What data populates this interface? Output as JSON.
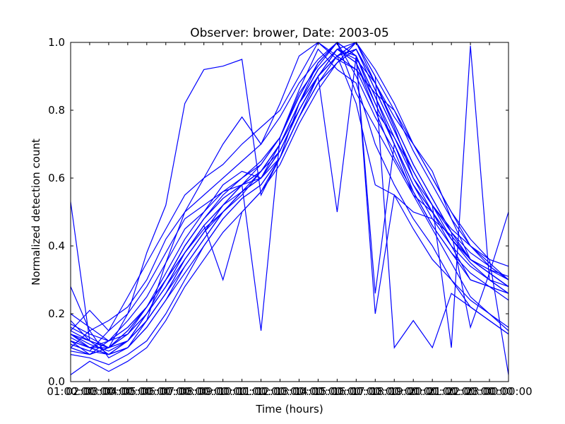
{
  "chart_data": {
    "type": "line",
    "title": "Observer: brower, Date: 2003-05",
    "xlabel": "Time (hours)",
    "ylabel": "Normalized detection count",
    "xlim": [
      1,
      24
    ],
    "ylim": [
      0,
      1
    ],
    "x_ticks": [
      {
        "value": 1,
        "label": "01:00:00"
      },
      {
        "value": 3,
        "label": "03:00:00"
      },
      {
        "value": 5,
        "label": "05:00:00"
      },
      {
        "value": 7,
        "label": "07:00:00"
      },
      {
        "value": 9,
        "label": "09:00:00"
      },
      {
        "value": 11,
        "label": "11:00:00"
      },
      {
        "value": 13,
        "label": "13:00:00"
      },
      {
        "value": 15,
        "label": "15:00:00"
      },
      {
        "value": 17,
        "label": "17:00:00"
      },
      {
        "value": 19,
        "label": "19:00:00"
      },
      {
        "value": 21,
        "label": "21:00:00"
      },
      {
        "value": 23,
        "label": "23:00:00"
      }
    ],
    "x_ticks_offset": [
      {
        "value": 2,
        "label": "02:00:00"
      },
      {
        "value": 4,
        "label": "04:00:00"
      },
      {
        "value": 6,
        "label": "06:00:00"
      },
      {
        "value": 8,
        "label": "08:00:00"
      },
      {
        "value": 10,
        "label": "10:00:00"
      },
      {
        "value": 12,
        "label": "12:00:00"
      },
      {
        "value": 14,
        "label": "14:00:00"
      },
      {
        "value": 16,
        "label": "16:00:00"
      },
      {
        "value": 18,
        "label": "18:00:00"
      },
      {
        "value": 20,
        "label": "20:00:00"
      },
      {
        "value": 22,
        "label": "22:00:00"
      },
      {
        "value": 24,
        "label": "00:00:00"
      }
    ],
    "y_ticks": [
      {
        "value": 0.0,
        "label": "0.0"
      },
      {
        "value": 0.2,
        "label": "0.2"
      },
      {
        "value": 0.4,
        "label": "0.4"
      },
      {
        "value": 0.6,
        "label": "0.6"
      },
      {
        "value": 0.8,
        "label": "0.8"
      },
      {
        "value": 1.0,
        "label": "1.0"
      }
    ],
    "grid": false,
    "line_color": "#0000ff",
    "x": [
      1,
      2,
      3,
      4,
      5,
      6,
      7,
      8,
      9,
      10,
      11,
      12,
      13,
      14,
      15,
      16,
      17,
      18,
      19,
      20,
      21,
      22,
      23,
      24
    ],
    "series": [
      {
        "values": [
          0.53,
          0.12,
          0.1,
          0.2,
          0.38,
          0.52,
          0.82,
          0.92,
          0.93,
          0.95,
          0.55,
          0.66,
          0.82,
          0.9,
          0.98,
          0.95,
          0.88,
          0.78,
          0.7,
          0.62,
          0.48,
          0.36,
          0.33,
          0.31
        ]
      },
      {
        "values": [
          0.15,
          0.21,
          0.15,
          0.25,
          0.35,
          0.45,
          0.55,
          0.6,
          0.7,
          0.78,
          0.7,
          0.82,
          0.96,
          1.0,
          0.95,
          0.92,
          0.85,
          0.8,
          0.7,
          0.6,
          0.5,
          0.4,
          0.36,
          0.34
        ]
      },
      {
        "values": [
          0.12,
          0.08,
          0.1,
          0.15,
          0.22,
          0.3,
          0.4,
          0.48,
          0.55,
          0.6,
          0.65,
          0.72,
          0.85,
          0.93,
          1.0,
          0.9,
          0.78,
          0.68,
          0.55,
          0.5,
          0.4,
          0.3,
          0.28,
          0.26
        ]
      },
      {
        "values": [
          0.28,
          0.15,
          0.07,
          0.1,
          0.18,
          0.35,
          0.5,
          0.6,
          0.64,
          0.7,
          0.75,
          0.8,
          0.9,
          1.0,
          0.96,
          0.82,
          0.58,
          0.55,
          0.5,
          0.48,
          0.43,
          0.36,
          0.33,
          0.3
        ]
      },
      {
        "values": [
          0.1,
          0.15,
          0.18,
          0.22,
          0.3,
          0.42,
          0.5,
          0.55,
          0.6,
          0.65,
          0.7,
          0.78,
          0.88,
          0.95,
          1.0,
          0.85,
          0.75,
          0.65,
          0.55,
          0.45,
          0.35,
          0.25,
          0.2,
          0.15
        ]
      },
      {
        "values": [
          0.18,
          0.12,
          0.08,
          0.12,
          0.2,
          0.3,
          0.38,
          0.45,
          0.5,
          0.55,
          0.62,
          0.7,
          0.82,
          0.92,
          0.98,
          1.0,
          0.88,
          0.75,
          0.6,
          0.52,
          0.45,
          0.4,
          0.35,
          0.3
        ]
      },
      {
        "values": [
          0.14,
          0.1,
          0.12,
          0.18,
          0.25,
          0.35,
          0.45,
          0.5,
          0.58,
          0.62,
          0.6,
          0.68,
          0.8,
          0.9,
          0.96,
          0.92,
          0.8,
          0.72,
          0.62,
          0.52,
          0.42,
          0.35,
          0.3,
          0.28
        ]
      },
      {
        "values": [
          0.11,
          0.09,
          0.15,
          0.2,
          0.28,
          0.38,
          0.48,
          0.52,
          0.56,
          0.6,
          0.64,
          0.72,
          0.86,
          0.98,
          0.92,
          0.88,
          0.7,
          0.58,
          0.48,
          0.4,
          0.3,
          0.22,
          0.18,
          0.14
        ]
      },
      {
        "values": [
          0.16,
          0.13,
          0.1,
          0.12,
          0.18,
          0.26,
          0.36,
          0.44,
          0.52,
          0.58,
          0.6,
          0.7,
          0.82,
          0.94,
          1.0,
          0.96,
          0.82,
          0.7,
          0.58,
          0.5,
          0.42,
          0.36,
          0.32,
          0.28
        ]
      },
      {
        "values": [
          0.08,
          0.07,
          0.05,
          0.08,
          0.12,
          0.2,
          0.3,
          0.4,
          0.48,
          0.54,
          0.58,
          0.66,
          0.78,
          0.88,
          0.96,
          1.0,
          0.9,
          0.8,
          0.68,
          0.58,
          0.48,
          0.4,
          0.34,
          0.3
        ]
      },
      {
        "values": [
          0.2,
          0.16,
          0.12,
          0.14,
          0.2,
          0.28,
          0.38,
          0.46,
          0.52,
          0.56,
          0.62,
          0.68,
          0.8,
          0.9,
          0.98,
          0.94,
          0.8,
          0.66,
          0.56,
          0.46,
          0.38,
          0.32,
          0.28,
          0.24
        ]
      },
      {
        "values": [
          0.12,
          0.1,
          0.08,
          0.1,
          0.16,
          0.24,
          0.34,
          0.42,
          0.5,
          0.56,
          0.6,
          0.66,
          0.78,
          0.88,
          0.94,
          0.98,
          0.86,
          0.74,
          0.62,
          0.52,
          0.44,
          0.38,
          0.34,
          0.3
        ]
      },
      {
        "values": [
          0.02,
          0.06,
          0.03,
          0.06,
          0.1,
          0.18,
          0.28,
          0.36,
          0.44,
          0.5,
          0.56,
          0.64,
          0.76,
          0.86,
          0.94,
          1.0,
          0.92,
          0.82,
          0.7,
          0.6,
          0.5,
          0.42,
          0.36,
          0.02
        ]
      },
      {
        "values": [
          0.14,
          0.12,
          0.1,
          0.14,
          0.22,
          0.32,
          0.42,
          0.5,
          0.56,
          0.58,
          0.64,
          0.72,
          0.84,
          0.94,
          1.0,
          0.96,
          0.84,
          0.7,
          0.58,
          0.48,
          0.4,
          0.34,
          0.3,
          0.26
        ]
      },
      {
        "values": [
          0.1,
          0.08,
          0.1,
          0.15,
          0.22,
          0.3,
          0.38,
          0.46,
          0.3,
          0.5,
          0.56,
          0.66,
          0.78,
          0.9,
          0.5,
          0.96,
          0.26,
          0.7,
          0.56,
          0.46,
          0.38,
          0.3,
          0.28,
          0.26
        ]
      },
      {
        "values": [
          0.13,
          0.1,
          0.08,
          0.12,
          0.2,
          0.28,
          0.36,
          0.44,
          0.52,
          0.58,
          0.62,
          0.7,
          0.82,
          0.92,
          0.98,
          0.94,
          0.82,
          0.7,
          0.58,
          0.5,
          0.42,
          0.36,
          0.32,
          0.28
        ]
      },
      {
        "values": [
          0.15,
          0.12,
          0.1,
          0.12,
          0.18,
          0.26,
          0.34,
          0.42,
          0.5,
          0.56,
          0.6,
          0.68,
          0.8,
          0.9,
          0.96,
          0.98,
          0.88,
          0.76,
          0.64,
          0.54,
          0.44,
          0.36,
          0.32,
          0.28
        ]
      },
      {
        "values": [
          0.09,
          0.08,
          0.12,
          0.16,
          0.22,
          0.3,
          0.4,
          0.48,
          0.54,
          0.58,
          0.62,
          0.7,
          0.82,
          0.92,
          0.98,
          0.96,
          0.2,
          0.55,
          0.45,
          0.36,
          0.3,
          0.24,
          0.2,
          0.16
        ]
      },
      {
        "values": [
          0.17,
          0.14,
          0.12,
          0.16,
          0.22,
          0.3,
          0.4,
          0.48,
          0.54,
          0.58,
          0.15,
          0.72,
          0.84,
          0.94,
          1.0,
          0.96,
          0.84,
          0.72,
          0.6,
          0.5,
          0.42,
          0.36,
          0.32,
          0.28
        ]
      },
      {
        "values": [
          0.12,
          0.1,
          0.1,
          0.14,
          0.2,
          0.28,
          0.38,
          0.46,
          0.52,
          0.58,
          0.62,
          0.7,
          0.8,
          0.9,
          0.96,
          1.0,
          0.9,
          0.1,
          0.18,
          0.1,
          0.26,
          0.22,
          0.18,
          0.14
        ]
      },
      {
        "values": [
          0.14,
          0.11,
          0.09,
          0.12,
          0.18,
          0.26,
          0.36,
          0.44,
          0.5,
          0.56,
          0.6,
          0.68,
          0.8,
          0.9,
          0.96,
          0.98,
          0.86,
          0.74,
          0.62,
          0.52,
          0.1,
          0.99,
          0.3,
          0.26
        ]
      },
      {
        "values": [
          0.11,
          0.09,
          0.08,
          0.1,
          0.16,
          0.24,
          0.32,
          0.4,
          0.48,
          0.54,
          0.58,
          0.66,
          0.78,
          0.88,
          0.94,
          0.98,
          0.88,
          0.76,
          0.64,
          0.54,
          0.44,
          0.16,
          0.32,
          0.5
        ]
      }
    ]
  }
}
